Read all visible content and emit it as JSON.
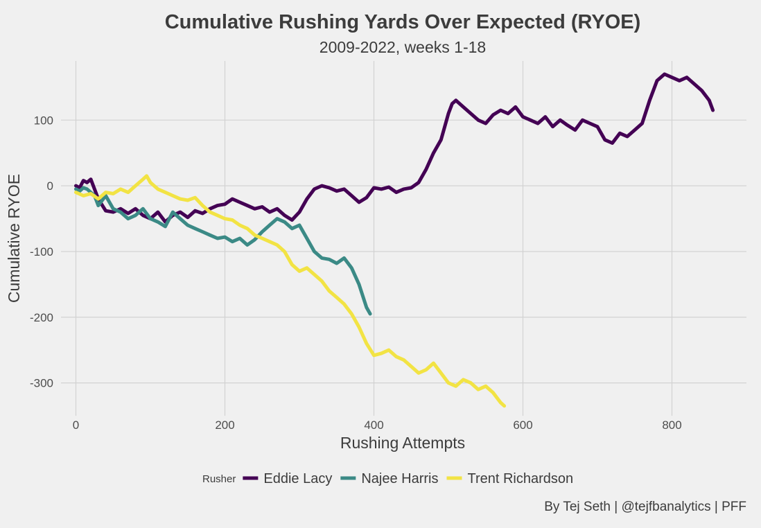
{
  "chart_data": {
    "type": "line",
    "title": "Cumulative Rushing Yards Over Expected (RYOE)",
    "subtitle": "2009-2022, weeks 1-18",
    "xlabel": "Rushing Attempts",
    "ylabel": "Cumulative RYOE",
    "xlim": [
      -20,
      900
    ],
    "ylim": [
      -350,
      190
    ],
    "x_ticks": [
      0,
      200,
      400,
      600,
      800
    ],
    "y_ticks": [
      100,
      0,
      -100,
      -200,
      -300
    ],
    "x_tick_labels": [
      "0",
      "200",
      "400",
      "600",
      "800"
    ],
    "y_tick_labels": [
      "100",
      "0",
      "-100",
      "-200",
      "-300"
    ],
    "grid": true,
    "legend": {
      "title": "Rusher",
      "position": "bottom"
    },
    "caption": "By Tej Seth | @tejfbanalytics | PFF",
    "series": [
      {
        "name": "Eddie Lacy",
        "color": "#440154",
        "points": [
          [
            0,
            0
          ],
          [
            5,
            -3
          ],
          [
            10,
            8
          ],
          [
            15,
            5
          ],
          [
            20,
            10
          ],
          [
            25,
            -5
          ],
          [
            30,
            -20
          ],
          [
            40,
            -38
          ],
          [
            50,
            -40
          ],
          [
            60,
            -35
          ],
          [
            70,
            -42
          ],
          [
            80,
            -35
          ],
          [
            90,
            -45
          ],
          [
            100,
            -50
          ],
          [
            110,
            -40
          ],
          [
            120,
            -55
          ],
          [
            130,
            -45
          ],
          [
            140,
            -40
          ],
          [
            150,
            -48
          ],
          [
            160,
            -38
          ],
          [
            170,
            -42
          ],
          [
            180,
            -35
          ],
          [
            190,
            -30
          ],
          [
            200,
            -28
          ],
          [
            210,
            -20
          ],
          [
            220,
            -25
          ],
          [
            230,
            -30
          ],
          [
            240,
            -35
          ],
          [
            250,
            -32
          ],
          [
            260,
            -40
          ],
          [
            270,
            -35
          ],
          [
            280,
            -45
          ],
          [
            290,
            -52
          ],
          [
            300,
            -40
          ],
          [
            310,
            -20
          ],
          [
            320,
            -5
          ],
          [
            330,
            0
          ],
          [
            340,
            -3
          ],
          [
            350,
            -8
          ],
          [
            360,
            -5
          ],
          [
            370,
            -15
          ],
          [
            380,
            -25
          ],
          [
            390,
            -18
          ],
          [
            400,
            -3
          ],
          [
            410,
            -5
          ],
          [
            420,
            -2
          ],
          [
            430,
            -10
          ],
          [
            440,
            -5
          ],
          [
            450,
            -3
          ],
          [
            460,
            5
          ],
          [
            470,
            25
          ],
          [
            480,
            50
          ],
          [
            490,
            70
          ],
          [
            500,
            110
          ],
          [
            505,
            125
          ],
          [
            510,
            130
          ],
          [
            520,
            120
          ],
          [
            530,
            110
          ],
          [
            540,
            100
          ],
          [
            550,
            95
          ],
          [
            560,
            108
          ],
          [
            570,
            115
          ],
          [
            580,
            110
          ],
          [
            590,
            120
          ],
          [
            600,
            105
          ],
          [
            610,
            100
          ],
          [
            620,
            95
          ],
          [
            630,
            105
          ],
          [
            640,
            90
          ],
          [
            650,
            100
          ],
          [
            660,
            92
          ],
          [
            670,
            85
          ],
          [
            680,
            100
          ],
          [
            690,
            95
          ],
          [
            700,
            90
          ],
          [
            710,
            70
          ],
          [
            720,
            65
          ],
          [
            730,
            80
          ],
          [
            740,
            75
          ],
          [
            750,
            85
          ],
          [
            760,
            95
          ],
          [
            770,
            130
          ],
          [
            780,
            160
          ],
          [
            790,
            170
          ],
          [
            800,
            165
          ],
          [
            810,
            160
          ],
          [
            820,
            165
          ],
          [
            830,
            155
          ],
          [
            840,
            145
          ],
          [
            850,
            130
          ],
          [
            855,
            115
          ]
        ]
      },
      {
        "name": "Najee Harris",
        "color": "#3b8a86",
        "points": [
          [
            0,
            -5
          ],
          [
            5,
            -8
          ],
          [
            10,
            -3
          ],
          [
            15,
            -5
          ],
          [
            20,
            -10
          ],
          [
            25,
            -15
          ],
          [
            30,
            -30
          ],
          [
            40,
            -15
          ],
          [
            50,
            -35
          ],
          [
            60,
            -40
          ],
          [
            70,
            -50
          ],
          [
            80,
            -45
          ],
          [
            90,
            -35
          ],
          [
            100,
            -50
          ],
          [
            110,
            -55
          ],
          [
            120,
            -62
          ],
          [
            130,
            -40
          ],
          [
            140,
            -50
          ],
          [
            150,
            -60
          ],
          [
            160,
            -65
          ],
          [
            170,
            -70
          ],
          [
            180,
            -75
          ],
          [
            190,
            -80
          ],
          [
            200,
            -78
          ],
          [
            210,
            -85
          ],
          [
            220,
            -80
          ],
          [
            230,
            -90
          ],
          [
            240,
            -82
          ],
          [
            250,
            -70
          ],
          [
            260,
            -60
          ],
          [
            270,
            -50
          ],
          [
            280,
            -55
          ],
          [
            290,
            -65
          ],
          [
            300,
            -60
          ],
          [
            310,
            -80
          ],
          [
            320,
            -100
          ],
          [
            330,
            -110
          ],
          [
            340,
            -112
          ],
          [
            350,
            -118
          ],
          [
            360,
            -110
          ],
          [
            370,
            -125
          ],
          [
            380,
            -150
          ],
          [
            390,
            -185
          ],
          [
            395,
            -195
          ]
        ]
      },
      {
        "name": "Trent Richardson",
        "color": "#f2e344",
        "points": [
          [
            0,
            -10
          ],
          [
            10,
            -15
          ],
          [
            20,
            -12
          ],
          [
            30,
            -20
          ],
          [
            40,
            -10
          ],
          [
            50,
            -12
          ],
          [
            60,
            -5
          ],
          [
            70,
            -10
          ],
          [
            80,
            0
          ],
          [
            90,
            10
          ],
          [
            95,
            15
          ],
          [
            100,
            5
          ],
          [
            110,
            -5
          ],
          [
            120,
            -10
          ],
          [
            130,
            -15
          ],
          [
            140,
            -20
          ],
          [
            150,
            -22
          ],
          [
            160,
            -18
          ],
          [
            170,
            -30
          ],
          [
            180,
            -40
          ],
          [
            190,
            -45
          ],
          [
            200,
            -50
          ],
          [
            210,
            -52
          ],
          [
            220,
            -60
          ],
          [
            230,
            -65
          ],
          [
            240,
            -75
          ],
          [
            250,
            -80
          ],
          [
            260,
            -85
          ],
          [
            270,
            -90
          ],
          [
            280,
            -100
          ],
          [
            290,
            -120
          ],
          [
            300,
            -130
          ],
          [
            310,
            -125
          ],
          [
            320,
            -135
          ],
          [
            330,
            -145
          ],
          [
            340,
            -160
          ],
          [
            350,
            -170
          ],
          [
            360,
            -180
          ],
          [
            370,
            -195
          ],
          [
            380,
            -215
          ],
          [
            390,
            -240
          ],
          [
            400,
            -258
          ],
          [
            410,
            -255
          ],
          [
            420,
            -250
          ],
          [
            430,
            -260
          ],
          [
            440,
            -265
          ],
          [
            450,
            -275
          ],
          [
            460,
            -285
          ],
          [
            470,
            -280
          ],
          [
            480,
            -270
          ],
          [
            490,
            -285
          ],
          [
            500,
            -300
          ],
          [
            510,
            -305
          ],
          [
            520,
            -295
          ],
          [
            530,
            -300
          ],
          [
            540,
            -310
          ],
          [
            550,
            -305
          ],
          [
            560,
            -315
          ],
          [
            570,
            -330
          ],
          [
            575,
            -335
          ]
        ]
      }
    ]
  }
}
